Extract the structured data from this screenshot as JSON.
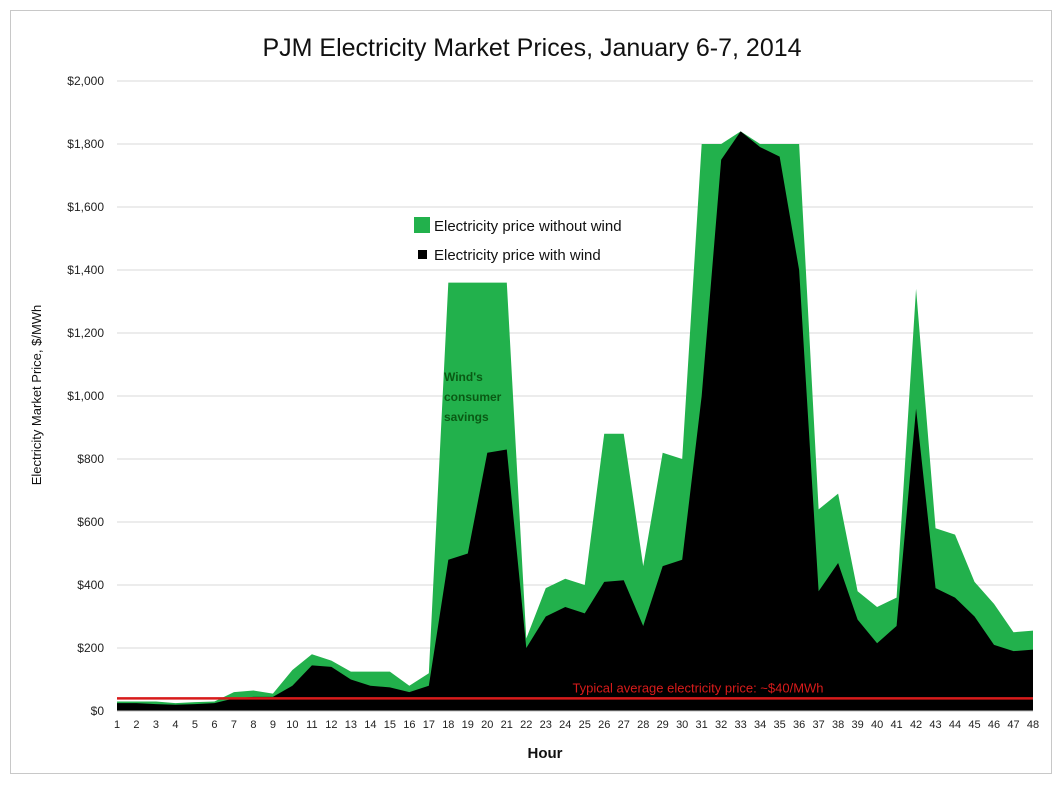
{
  "chart_data": {
    "type": "area",
    "title": "PJM Electricity Market Prices, January 6-7, 2014",
    "xlabel": "Hour",
    "ylabel": "Electricity Market Price, $/MWh",
    "x": [
      1,
      2,
      3,
      4,
      5,
      6,
      7,
      8,
      9,
      10,
      11,
      12,
      13,
      14,
      15,
      16,
      17,
      18,
      19,
      20,
      21,
      22,
      23,
      24,
      25,
      26,
      27,
      28,
      29,
      30,
      31,
      32,
      33,
      34,
      35,
      36,
      37,
      38,
      39,
      40,
      41,
      42,
      43,
      44,
      45,
      46,
      47,
      48
    ],
    "ylim": [
      0,
      2000
    ],
    "yticks": [
      0,
      200,
      400,
      600,
      800,
      1000,
      1200,
      1400,
      1600,
      1800,
      2000
    ],
    "ytick_labels": [
      "$0",
      "$200",
      "$400",
      "$600",
      "$800",
      "$1,000",
      "$1,200",
      "$1,400",
      "$1,600",
      "$1,800",
      "$2,000"
    ],
    "grid": "horizontal",
    "legend_position": "upper-center",
    "series": [
      {
        "name": "Electricity price without wind",
        "color": "#22b14c",
        "values": [
          30,
          30,
          30,
          25,
          28,
          30,
          60,
          65,
          55,
          130,
          180,
          160,
          125,
          125,
          125,
          80,
          120,
          1360,
          1360,
          1360,
          1360,
          230,
          390,
          420,
          400,
          880,
          880,
          460,
          820,
          800,
          1800,
          1800,
          1840,
          1800,
          1800,
          1800,
          640,
          690,
          380,
          330,
          360,
          1340,
          580,
          560,
          410,
          340,
          250,
          255
        ]
      },
      {
        "name": "Electricity price with wind",
        "color": "#000000",
        "values": [
          25,
          25,
          22,
          20,
          22,
          25,
          40,
          45,
          45,
          80,
          145,
          140,
          100,
          80,
          75,
          60,
          80,
          480,
          500,
          820,
          830,
          200,
          300,
          330,
          310,
          410,
          415,
          270,
          460,
          480,
          1000,
          1750,
          1840,
          1790,
          1760,
          1400,
          380,
          470,
          290,
          215,
          270,
          960,
          390,
          360,
          300,
          210,
          190,
          195
        ]
      }
    ],
    "reference_line": {
      "value": 40,
      "label": "Typical average electricity price: ~$40/MWh",
      "color": "#d81b1b"
    },
    "annotation": [
      "Wind's",
      "consumer",
      "savings"
    ]
  }
}
